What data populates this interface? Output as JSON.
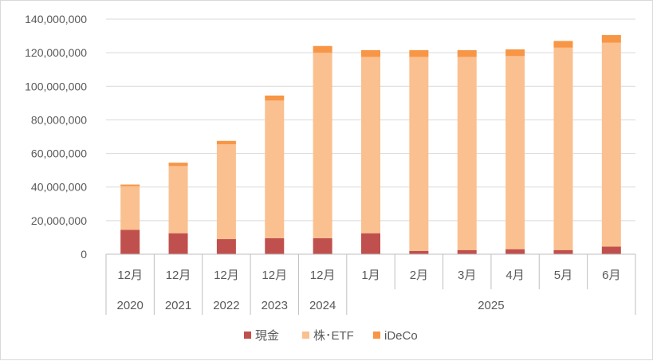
{
  "chart_data": {
    "type": "bar",
    "stacked": true,
    "categories": [
      "12月",
      "12月",
      "12月",
      "12月",
      "12月",
      "1月",
      "2月",
      "3月",
      "4月",
      "5月",
      "6月"
    ],
    "year_groups": [
      {
        "label": "2020",
        "span": 1
      },
      {
        "label": "2021",
        "span": 1
      },
      {
        "label": "2022",
        "span": 1
      },
      {
        "label": "2023",
        "span": 1
      },
      {
        "label": "2024",
        "span": 1
      },
      {
        "label": "2025",
        "span": 6
      }
    ],
    "series": [
      {
        "name": "現金",
        "color": "#c0504d",
        "values": [
          14500000,
          12500000,
          9000000,
          9500000,
          9500000,
          12500000,
          2000000,
          2500000,
          3000000,
          2500000,
          4500000
        ]
      },
      {
        "name": "株･ETF",
        "color": "#fac090",
        "values": [
          26000000,
          40000000,
          56500000,
          82000000,
          110500000,
          105000000,
          115500000,
          115000000,
          115000000,
          120500000,
          121500000
        ]
      },
      {
        "name": "iDeCo",
        "color": "#f79646",
        "values": [
          1000000,
          2000000,
          2000000,
          3000000,
          4000000,
          4000000,
          4000000,
          4000000,
          4000000,
          4000000,
          4500000
        ]
      }
    ],
    "ylim": [
      0,
      140000000
    ],
    "yticks": [
      0,
      20000000,
      40000000,
      60000000,
      80000000,
      100000000,
      120000000,
      140000000
    ],
    "ytick_labels": [
      "0",
      "20,000,000",
      "40,000,000",
      "60,000,000",
      "80,000,000",
      "100,000,000",
      "120,000,000",
      "140,000,000"
    ],
    "grid": true,
    "legend_position": "bottom"
  }
}
